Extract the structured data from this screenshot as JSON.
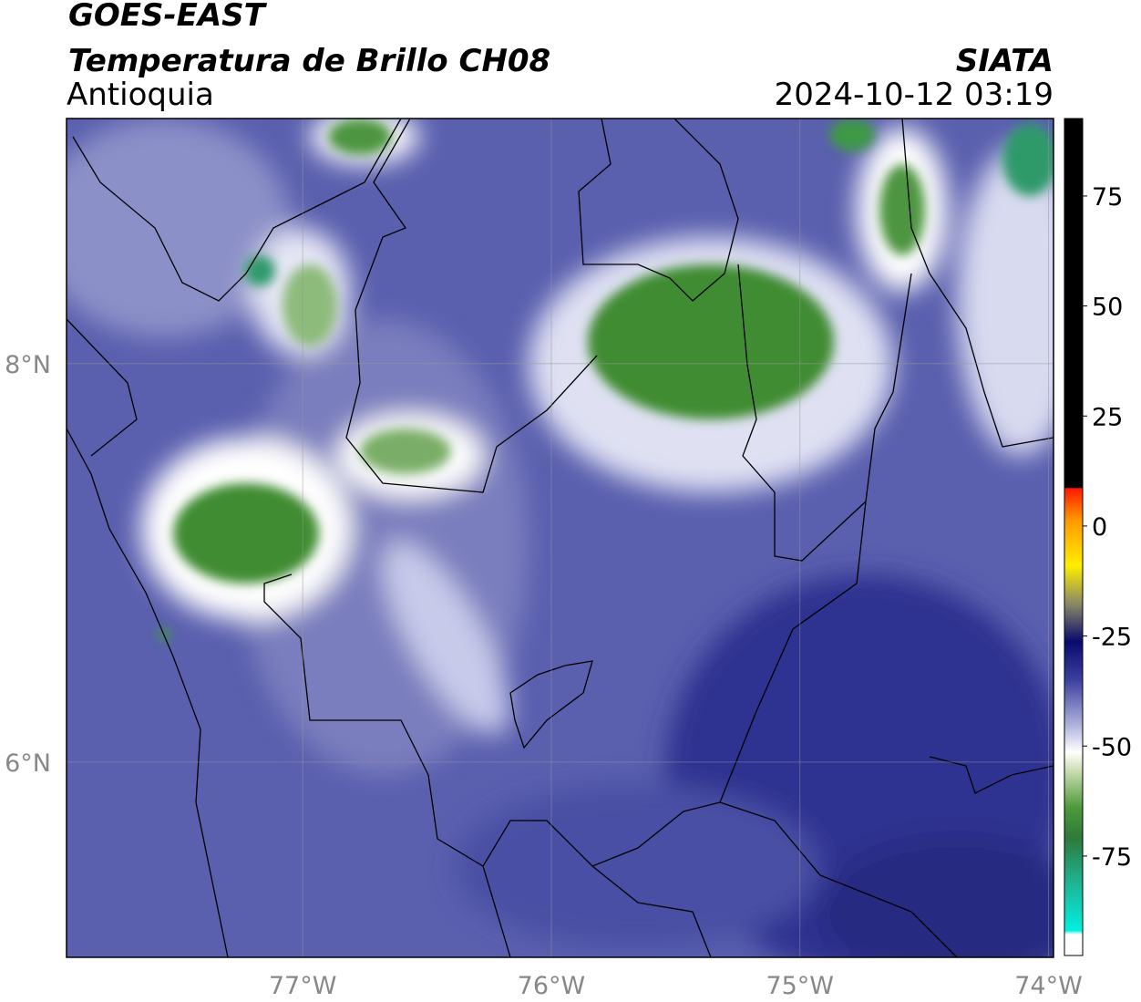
{
  "header": {
    "title": "GOES-EAST",
    "subtitle": "Temperatura de Brillo CH08",
    "region": "Antioquia",
    "source": "SIATA",
    "timestamp": "2024-10-12 03:19"
  },
  "map": {
    "xlim": [
      -77.95,
      -73.98
    ],
    "ylim": [
      5.02,
      9.23
    ],
    "xticks": [
      {
        "value": -77,
        "label": "77°W"
      },
      {
        "value": -76,
        "label": "76°W"
      },
      {
        "value": -75,
        "label": "75°W"
      },
      {
        "value": -74,
        "label": "74°W"
      }
    ],
    "yticks": [
      {
        "value": 8,
        "label": "8°N"
      },
      {
        "value": 6,
        "label": "6°N"
      }
    ],
    "grid": true
  },
  "colorbar": {
    "lim": [
      -97.6,
      92.6
    ],
    "ticks": [
      75,
      50,
      25,
      0,
      -25,
      -50,
      -75
    ]
  }
}
